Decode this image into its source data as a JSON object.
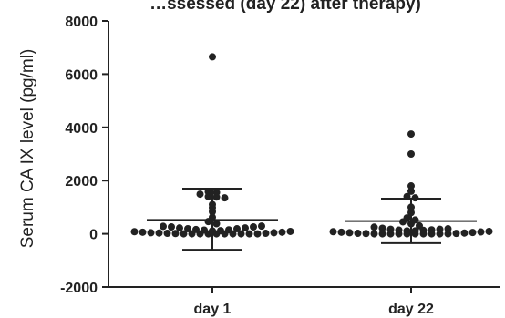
{
  "chart_data": {
    "type": "scatter",
    "title": "",
    "title_visible_fragment": "…ssessed (day 22) after therapy)",
    "xlabel": "",
    "ylabel": "Serum CA IX level (pg/ml)",
    "ylim": [
      -2000,
      8000
    ],
    "yticks": [
      -2000,
      0,
      2000,
      4000,
      6000,
      8000
    ],
    "categories": [
      "day 1",
      "day 22"
    ],
    "grid": false,
    "legend": "none",
    "colors": {
      "points": "#222222",
      "axes": "#222222"
    },
    "groups": [
      {
        "category": "day 1",
        "mean": 520,
        "sd_upper": 1700,
        "sd_lower": -600,
        "values": [
          6650,
          1580,
          1550,
          1490,
          1400,
          1380,
          1350,
          1100,
          980,
          830,
          620,
          460,
          380,
          280,
          260,
          220,
          190,
          160,
          140,
          110,
          80,
          60,
          40,
          30,
          20,
          10,
          0,
          0,
          0,
          0,
          0,
          0,
          0,
          0,
          0,
          0,
          20,
          40,
          60,
          90,
          120,
          150,
          190,
          220,
          260,
          290
        ]
      },
      {
        "category": "day 22",
        "mean": 480,
        "sd_upper": 1320,
        "sd_lower": -350,
        "values": [
          3750,
          3000,
          1800,
          1600,
          1400,
          1350,
          1000,
          800,
          600,
          520,
          450,
          380,
          300,
          250,
          210,
          170,
          140,
          110,
          80,
          60,
          40,
          20,
          10,
          0,
          0,
          0,
          0,
          0,
          0,
          0,
          0,
          0,
          0,
          15,
          30,
          50,
          70,
          90,
          110,
          130,
          150,
          170,
          190
        ]
      }
    ]
  }
}
